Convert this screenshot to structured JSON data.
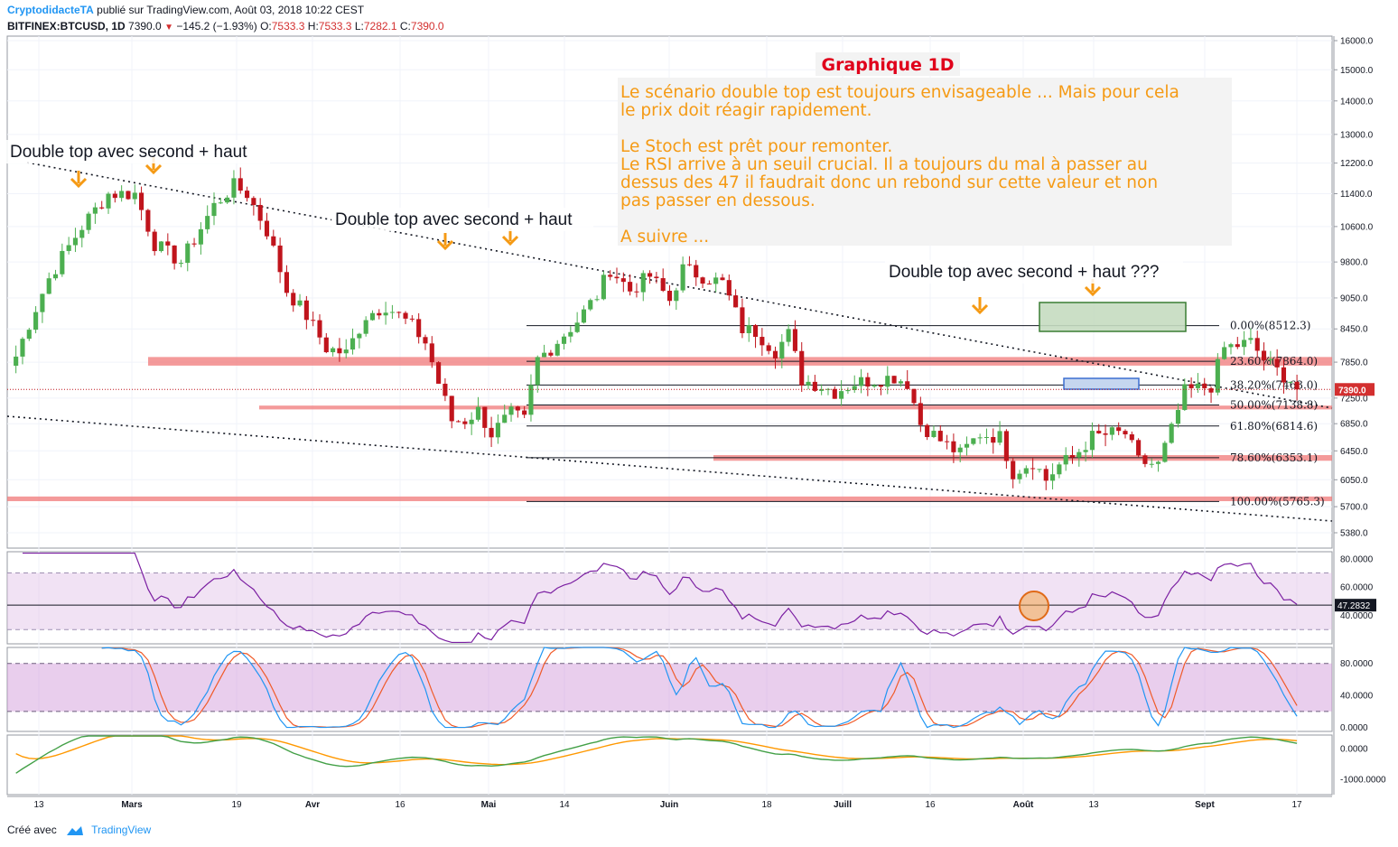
{
  "header": {
    "author": "CryptodidacteTA",
    "published": "publié sur TradingView.com, Août 03, 2018 10:22 CEST",
    "symbol": "BITFINEX:BTCUSD, 1D",
    "last": "7390.0",
    "change": "−145.2 (−1.93%)",
    "o_label": "O:",
    "o_value": "7533.3",
    "h_label": "H:",
    "h_value": "7533.3",
    "l_label": "L:",
    "l_value": "7282.1",
    "c_label": "C:",
    "c_value": "7390.0"
  },
  "footer": {
    "created_with": "Créé avec",
    "brand": "TradingView"
  },
  "colors": {
    "up": "#4caf50",
    "down": "#c0141c",
    "zone": "#f07878",
    "rsi": "#7b1fa2",
    "stoch_k": "#2196f3",
    "stoch_d": "#f05a28",
    "annotation": "#f59a14"
  },
  "annotations": {
    "title": "Graphique 1D",
    "text_lines": [
      "Le scénario double top est toujours envisageable ... Mais pour cela",
      "le prix doit réagir rapidement.",
      "",
      "Le Stoch est prêt pour remonter.",
      "Le RSI arrive à un seuil crucial. Il a toujours du mal à passer au",
      "dessus des 47 il faudrait donc un rebond sur cette valeur et non",
      "pas passer en dessous.",
      "",
      "A suivre ..."
    ],
    "labels": [
      "Double top avec second + haut",
      "Double top avec second + haut",
      "Double top avec second + haut ???"
    ]
  },
  "chart_data": [
    {
      "type": "candlestick",
      "interval": "1D",
      "price_axis_ticks": [
        "16000.0",
        "15000.0",
        "14000.0",
        "13000.0",
        "12200.0",
        "11400.0",
        "10600.0",
        "9800.0",
        "9050.0",
        "8450.0",
        "7850.0",
        "7250.0",
        "6850.0",
        "6450.0",
        "6050.0",
        "5700.0",
        "5380.0"
      ],
      "last_price_label": "7390.0",
      "time_axis_labels": [
        "13",
        "Mars",
        "19",
        "Avr",
        "16",
        "Mai",
        "14",
        "Juin",
        "18",
        "Juill",
        "16",
        "Août",
        "13",
        "Sept",
        "17"
      ],
      "ylim": [
        5100,
        16400
      ],
      "close_path": [
        [
          0,
          7950
        ],
        [
          5,
          9450
        ],
        [
          10,
          10600
        ],
        [
          14,
          11400
        ],
        [
          18,
          11400
        ],
        [
          21,
          10200
        ],
        [
          25,
          9800
        ],
        [
          27,
          10300
        ],
        [
          30,
          11100
        ],
        [
          33,
          11600
        ],
        [
          35,
          11400
        ],
        [
          38,
          10500
        ],
        [
          41,
          9200
        ],
        [
          44,
          8700
        ],
        [
          47,
          8100
        ],
        [
          50,
          8000
        ],
        [
          53,
          8700
        ],
        [
          56,
          8900
        ],
        [
          60,
          8500
        ],
        [
          62,
          8200
        ],
        [
          64,
          7500
        ],
        [
          66,
          6900
        ],
        [
          68,
          6900
        ],
        [
          70,
          7050
        ],
        [
          72,
          6700
        ],
        [
          75,
          7000
        ],
        [
          77,
          6900
        ],
        [
          79,
          7900
        ],
        [
          81,
          8100
        ],
        [
          85,
          8600
        ],
        [
          88,
          9100
        ],
        [
          90,
          9650
        ],
        [
          93,
          9200
        ],
        [
          96,
          9500
        ],
        [
          99,
          9000
        ],
        [
          101,
          9650
        ],
        [
          104,
          9500
        ],
        [
          107,
          9350
        ],
        [
          110,
          8450
        ],
        [
          112,
          8400
        ],
        [
          115,
          8050
        ],
        [
          117,
          8350
        ],
        [
          119,
          7550
        ],
        [
          122,
          7450
        ],
        [
          124,
          7350
        ],
        [
          127,
          7500
        ],
        [
          130,
          7550
        ],
        [
          133,
          7600
        ],
        [
          135,
          7500
        ],
        [
          137,
          6850
        ],
        [
          140,
          6600
        ],
        [
          143,
          6400
        ],
        [
          146,
          6700
        ],
        [
          149,
          6650
        ],
        [
          151,
          6150
        ],
        [
          154,
          6300
        ],
        [
          156,
          6050
        ],
        [
          158,
          6250
        ],
        [
          160,
          6350
        ],
        [
          163,
          6650
        ],
        [
          166,
          6700
        ],
        [
          168,
          6700
        ],
        [
          170,
          6300
        ],
        [
          173,
          6250
        ],
        [
          175,
          6750
        ],
        [
          177,
          7350
        ],
        [
          179,
          7400
        ],
        [
          181,
          7450
        ],
        [
          183,
          8100
        ],
        [
          185,
          8150
        ],
        [
          187,
          8200
        ],
        [
          189,
          7900
        ],
        [
          191,
          7700
        ],
        [
          193,
          7550
        ],
        [
          194,
          7390
        ]
      ],
      "resistance_zones": [
        {
          "from": 7790,
          "to": 7940
        },
        {
          "from": 7070,
          "to": 7130
        },
        {
          "from": 6310,
          "to": 6390
        },
        {
          "from": 5770,
          "to": 5830
        }
      ],
      "fibonacci": [
        {
          "label": "0.00%(8512.3)",
          "price": 8512.3
        },
        {
          "label": "23.60%(7864.0)",
          "price": 7864.0
        },
        {
          "label": "38.20%(7463.0)",
          "price": 7463.0
        },
        {
          "label": "50.00%(7138.8)",
          "price": 7138.8
        },
        {
          "label": "61.80%(6814.6)",
          "price": 6814.6
        },
        {
          "label": "78.60%(6353.1)",
          "price": 6353.1
        },
        {
          "label": "100.00%(5765.3)",
          "price": 5765.3
        }
      ],
      "trendlines": "dotted",
      "target_box_upper": "green",
      "target_box_lower": "blue"
    },
    {
      "type": "line",
      "name": "RSI",
      "y_ticks": [
        "80.0000",
        "60.0000",
        "40.0000"
      ],
      "last_value": "47.2832",
      "band": [
        30,
        70
      ],
      "ylim": [
        20,
        85
      ]
    },
    {
      "type": "line",
      "name": "Stoch",
      "y_ticks": [
        "80.0000",
        "40.0000",
        "0.0000"
      ],
      "band": [
        20,
        80
      ],
      "ylim": [
        -5,
        100
      ]
    },
    {
      "type": "line",
      "name": "Oscillator",
      "y_ticks": [
        "0.0000",
        "-1000.0000"
      ],
      "ylim": [
        -1500,
        450
      ]
    }
  ]
}
